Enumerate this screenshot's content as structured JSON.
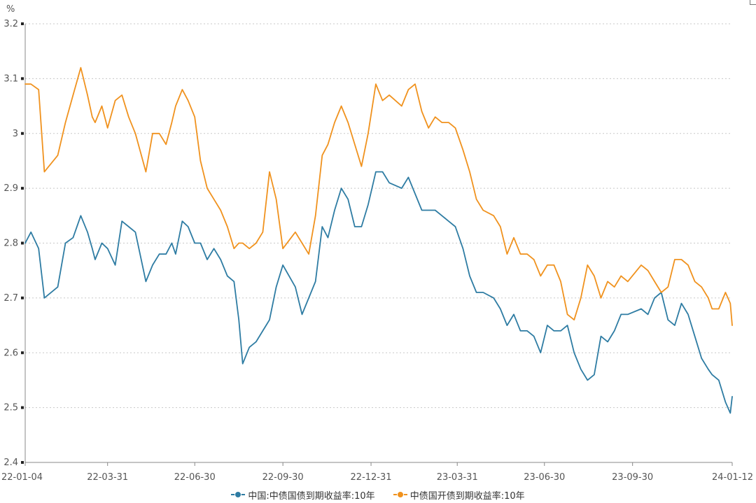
{
  "chart_data": {
    "type": "line",
    "y_unit": "%",
    "ylim": [
      2.4,
      3.2
    ],
    "y_ticks": [
      "3.2",
      "3.1",
      "3",
      "2.9",
      "2.8",
      "2.7",
      "2.6",
      "2.5",
      "2.4"
    ],
    "y_tick_values": [
      3.2,
      3.1,
      3.0,
      2.9,
      2.8,
      2.7,
      2.6,
      2.5,
      2.4
    ],
    "x_ticks": [
      "22-01-04",
      "22-03-31",
      "22-06-30",
      "22-09-30",
      "22-12-31",
      "23-03-31",
      "23-06-30",
      "23-09-30",
      "24-01-12"
    ],
    "grid": "horizontal-dotted",
    "legend_position": "bottom",
    "series": [
      {
        "name": "中国:中债国债到期收益率:10年",
        "color": "#2e7ca3",
        "x": [
          "22-01-04",
          "22-01-10",
          "22-01-18",
          "22-01-24",
          "22-02-07",
          "22-02-15",
          "22-02-23",
          "22-03-03",
          "22-03-10",
          "22-03-15",
          "22-03-18",
          "22-03-25",
          "22-03-31",
          "22-04-08",
          "22-04-15",
          "22-04-22",
          "22-04-29",
          "22-05-10",
          "22-05-17",
          "22-05-24",
          "22-05-31",
          "22-06-06",
          "22-06-10",
          "22-06-17",
          "22-06-23",
          "22-06-30",
          "22-07-06",
          "22-07-13",
          "22-07-20",
          "22-07-27",
          "22-08-03",
          "22-08-10",
          "22-08-15",
          "22-08-19",
          "22-08-26",
          "22-09-02",
          "22-09-09",
          "22-09-16",
          "22-09-23",
          "22-09-30",
          "22-10-13",
          "22-10-20",
          "22-10-27",
          "22-11-03",
          "22-11-10",
          "22-11-16",
          "22-11-23",
          "22-11-30",
          "22-12-07",
          "22-12-14",
          "22-12-21",
          "22-12-28",
          "23-01-05",
          "23-01-12",
          "23-01-19",
          "23-02-01",
          "23-02-08",
          "23-02-15",
          "23-02-22",
          "23-03-01",
          "23-03-08",
          "23-03-15",
          "23-03-22",
          "23-03-29",
          "23-04-06",
          "23-04-13",
          "23-04-20",
          "23-04-27",
          "23-05-08",
          "23-05-15",
          "23-05-22",
          "23-05-29",
          "23-06-05",
          "23-06-12",
          "23-06-19",
          "23-06-26",
          "23-07-03",
          "23-07-10",
          "23-07-17",
          "23-07-24",
          "23-07-31",
          "23-08-07",
          "23-08-14",
          "23-08-21",
          "23-08-28",
          "23-09-04",
          "23-09-11",
          "23-09-18",
          "23-09-25",
          "23-10-09",
          "23-10-16",
          "23-10-23",
          "23-10-30",
          "23-11-06",
          "23-11-13",
          "23-11-20",
          "23-11-27",
          "23-12-04",
          "23-12-11",
          "23-12-18",
          "23-12-22",
          "23-12-29",
          "24-01-05",
          "24-01-10",
          "24-01-12"
        ],
        "values": [
          2.8,
          2.82,
          2.79,
          2.7,
          2.72,
          2.8,
          2.81,
          2.85,
          2.82,
          2.79,
          2.77,
          2.8,
          2.79,
          2.76,
          2.84,
          2.83,
          2.82,
          2.73,
          2.76,
          2.78,
          2.78,
          2.8,
          2.78,
          2.84,
          2.83,
          2.8,
          2.8,
          2.77,
          2.79,
          2.77,
          2.74,
          2.73,
          2.66,
          2.58,
          2.61,
          2.62,
          2.64,
          2.66,
          2.72,
          2.76,
          2.72,
          2.67,
          2.7,
          2.73,
          2.83,
          2.81,
          2.86,
          2.9,
          2.88,
          2.83,
          2.83,
          2.87,
          2.93,
          2.93,
          2.91,
          2.9,
          2.92,
          2.89,
          2.86,
          2.86,
          2.86,
          2.85,
          2.84,
          2.83,
          2.79,
          2.74,
          2.71,
          2.71,
          2.7,
          2.68,
          2.65,
          2.67,
          2.64,
          2.64,
          2.63,
          2.6,
          2.65,
          2.64,
          2.64,
          2.65,
          2.6,
          2.57,
          2.55,
          2.56,
          2.63,
          2.62,
          2.64,
          2.67,
          2.67,
          2.68,
          2.67,
          2.7,
          2.71,
          2.66,
          2.65,
          2.69,
          2.67,
          2.63,
          2.59,
          2.57,
          2.56,
          2.55,
          2.51,
          2.49,
          2.52
        ]
      },
      {
        "name": "中债国开债到期收益率:10年",
        "color": "#f0921e",
        "x": [
          "22-01-04",
          "22-01-10",
          "22-01-18",
          "22-01-24",
          "22-02-07",
          "22-02-15",
          "22-02-23",
          "22-03-03",
          "22-03-10",
          "22-03-15",
          "22-03-18",
          "22-03-25",
          "22-03-31",
          "22-04-08",
          "22-04-15",
          "22-04-22",
          "22-04-29",
          "22-05-10",
          "22-05-17",
          "22-05-24",
          "22-05-31",
          "22-06-06",
          "22-06-10",
          "22-06-17",
          "22-06-23",
          "22-06-30",
          "22-07-06",
          "22-07-13",
          "22-07-20",
          "22-07-27",
          "22-08-03",
          "22-08-10",
          "22-08-15",
          "22-08-19",
          "22-08-26",
          "22-09-02",
          "22-09-09",
          "22-09-16",
          "22-09-23",
          "22-09-30",
          "22-10-13",
          "22-10-20",
          "22-10-27",
          "22-11-03",
          "22-11-10",
          "22-11-16",
          "22-11-23",
          "22-11-30",
          "22-12-07",
          "22-12-14",
          "22-12-21",
          "22-12-28",
          "23-01-05",
          "23-01-12",
          "23-01-19",
          "23-02-01",
          "23-02-08",
          "23-02-15",
          "23-02-22",
          "23-03-01",
          "23-03-08",
          "23-03-15",
          "23-03-22",
          "23-03-29",
          "23-04-06",
          "23-04-13",
          "23-04-20",
          "23-04-27",
          "23-05-08",
          "23-05-15",
          "23-05-22",
          "23-05-29",
          "23-06-05",
          "23-06-12",
          "23-06-19",
          "23-06-26",
          "23-07-03",
          "23-07-10",
          "23-07-17",
          "23-07-24",
          "23-07-31",
          "23-08-07",
          "23-08-14",
          "23-08-21",
          "23-08-28",
          "23-09-04",
          "23-09-11",
          "23-09-18",
          "23-09-25",
          "23-10-09",
          "23-10-16",
          "23-10-23",
          "23-10-30",
          "23-11-06",
          "23-11-13",
          "23-11-20",
          "23-11-27",
          "23-12-04",
          "23-12-11",
          "23-12-18",
          "23-12-22",
          "23-12-29",
          "24-01-05",
          "24-01-10",
          "24-01-12"
        ],
        "values": [
          3.09,
          3.09,
          3.08,
          2.93,
          2.96,
          3.02,
          3.07,
          3.12,
          3.07,
          3.03,
          3.02,
          3.05,
          3.01,
          3.06,
          3.07,
          3.03,
          3.0,
          2.93,
          3.0,
          3.0,
          2.98,
          3.02,
          3.05,
          3.08,
          3.06,
          3.03,
          2.95,
          2.9,
          2.88,
          2.86,
          2.83,
          2.79,
          2.8,
          2.8,
          2.79,
          2.8,
          2.82,
          2.93,
          2.88,
          2.79,
          2.82,
          2.8,
          2.78,
          2.85,
          2.96,
          2.98,
          3.02,
          3.05,
          3.02,
          2.98,
          2.94,
          3.0,
          3.09,
          3.06,
          3.07,
          3.05,
          3.08,
          3.09,
          3.04,
          3.01,
          3.03,
          3.02,
          3.02,
          3.01,
          2.97,
          2.93,
          2.88,
          2.86,
          2.85,
          2.83,
          2.78,
          2.81,
          2.78,
          2.78,
          2.77,
          2.74,
          2.76,
          2.76,
          2.73,
          2.67,
          2.66,
          2.7,
          2.76,
          2.74,
          2.7,
          2.73,
          2.72,
          2.74,
          2.73,
          2.76,
          2.75,
          2.73,
          2.71,
          2.72,
          2.77,
          2.77,
          2.76,
          2.73,
          2.72,
          2.7,
          2.68,
          2.68,
          2.71,
          2.69,
          2.65
        ]
      }
    ]
  }
}
